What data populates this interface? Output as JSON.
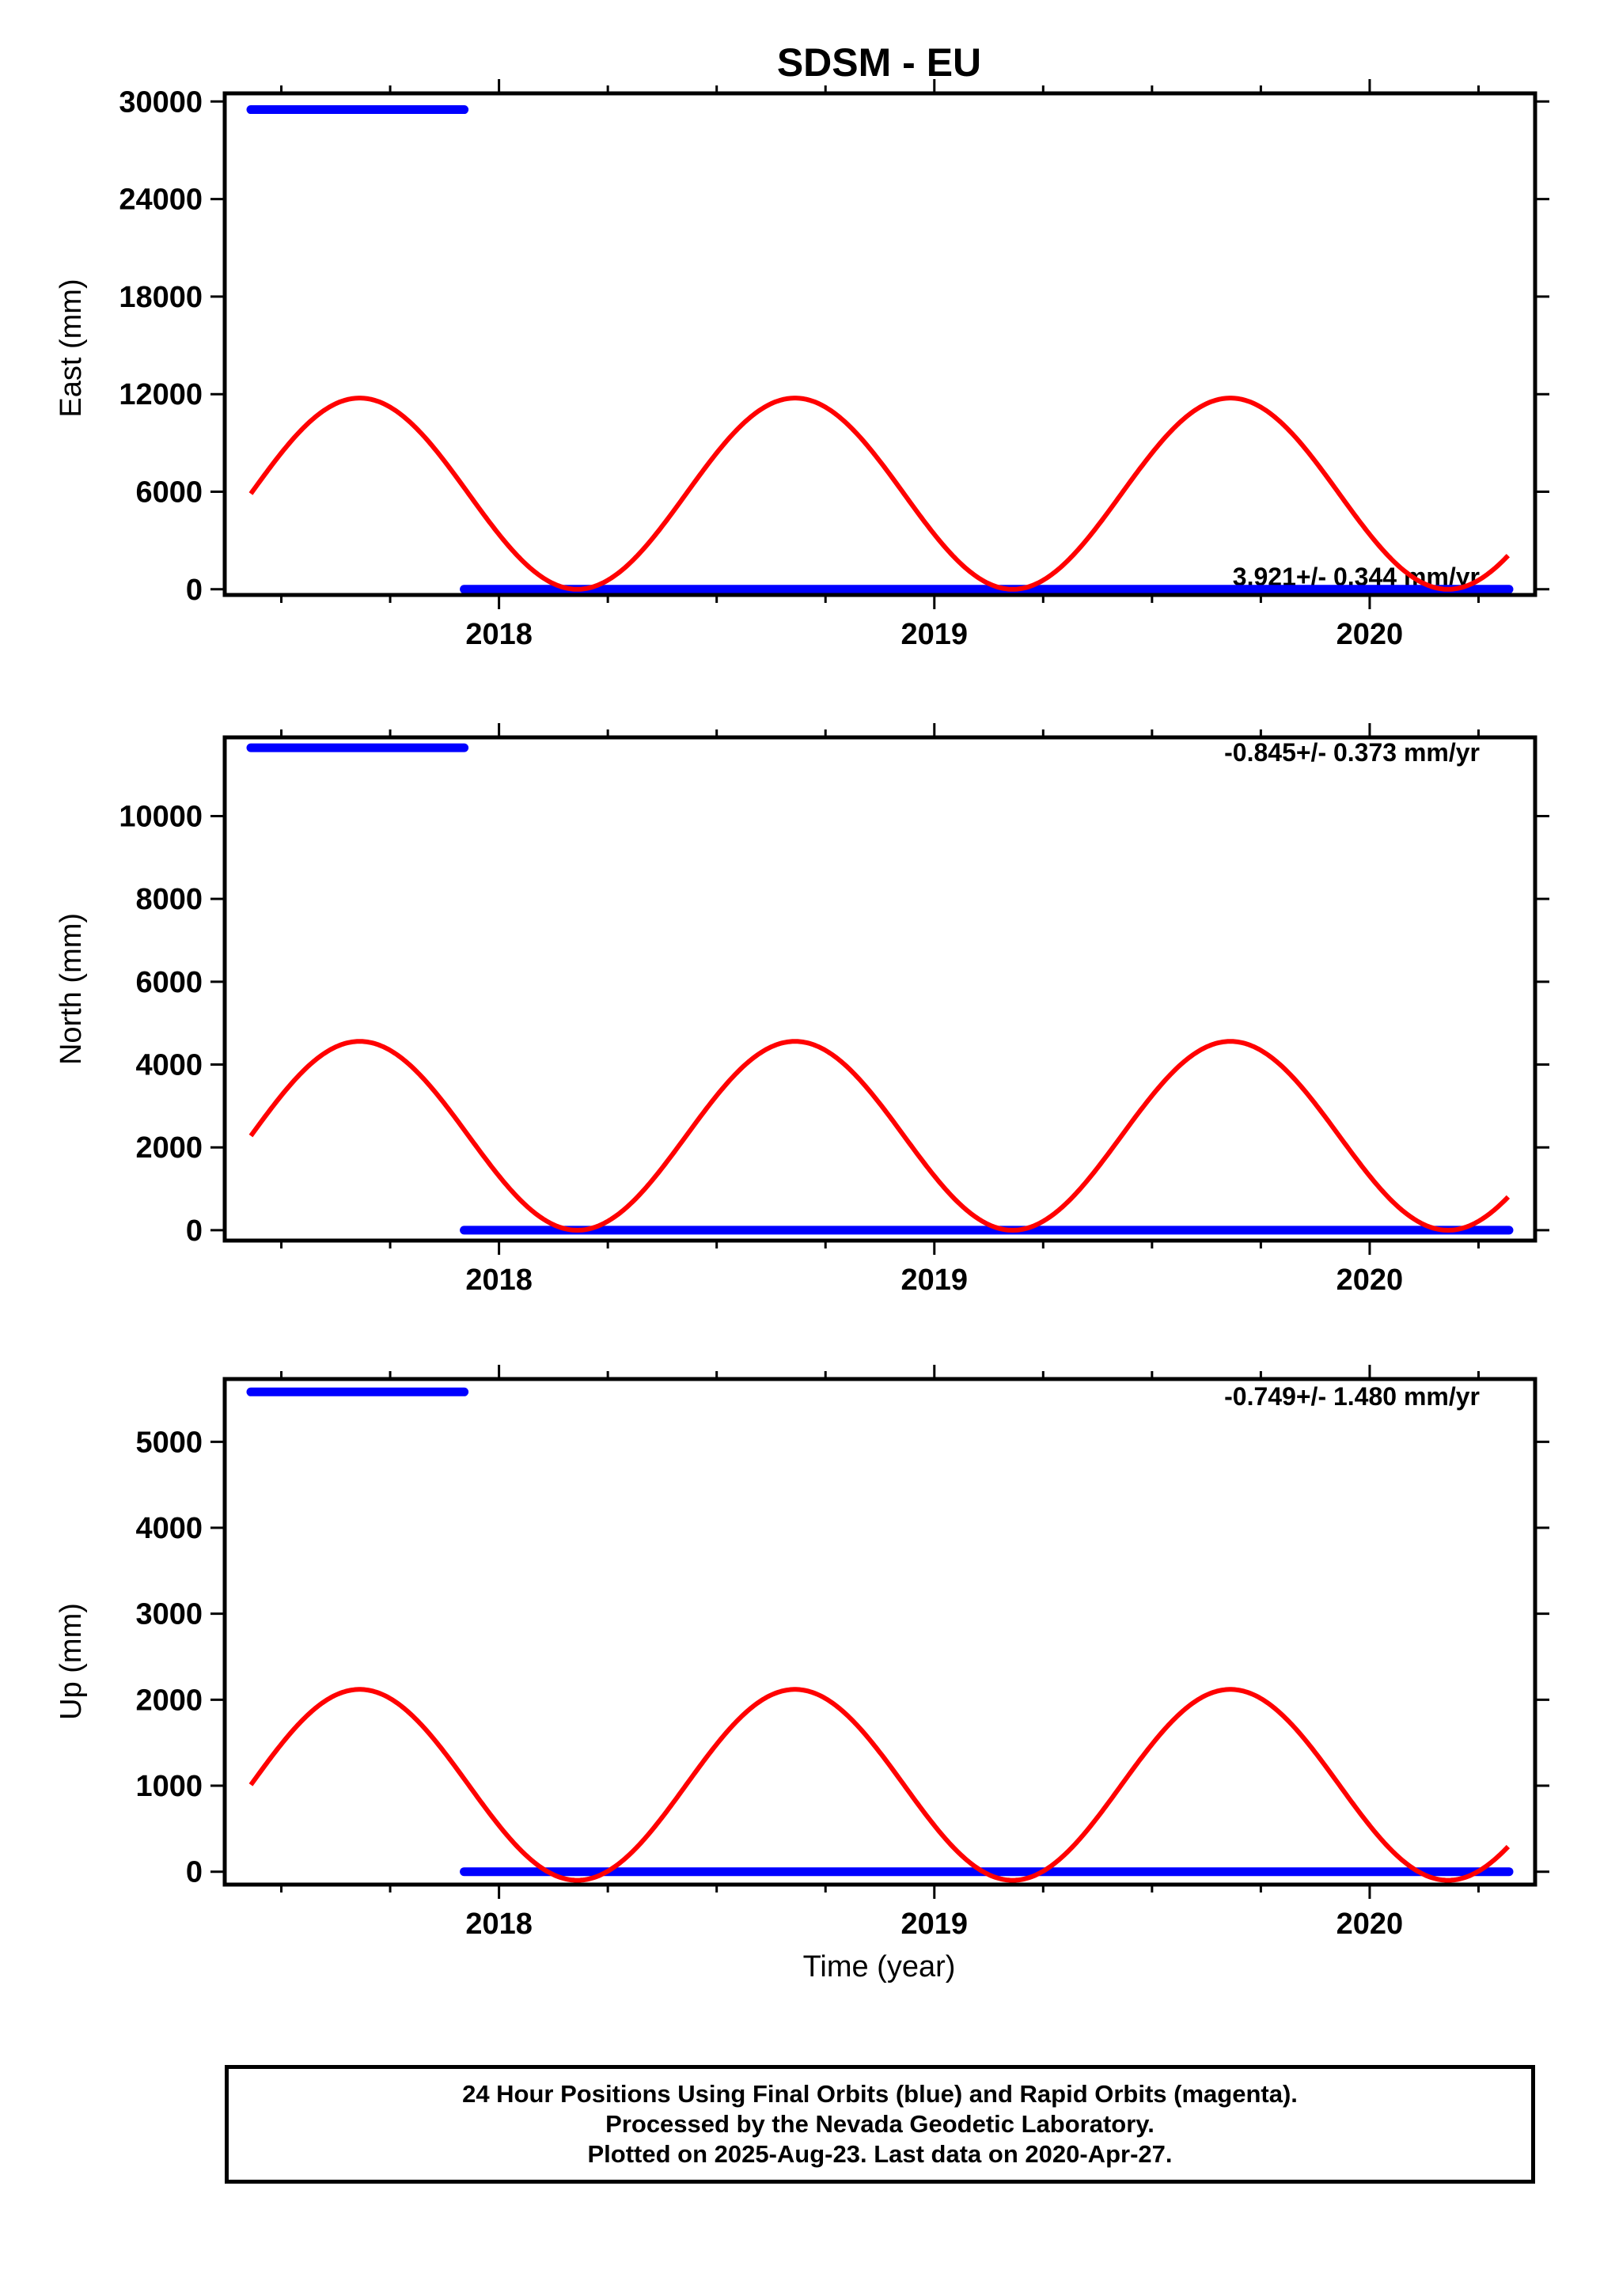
{
  "colors": {
    "final_orbits": "#0000ff",
    "model_fit": "#ff0000",
    "frame": "#000000"
  },
  "chart_data": [
    {
      "type": "scatter",
      "title": "SDSM - EU",
      "ylabel": "East (mm)",
      "xlabel": "",
      "ylim": [
        -350,
        30500
      ],
      "xlim": [
        2017.37,
        2020.38
      ],
      "yticks": [
        "0",
        "6000",
        "12000",
        "18000",
        "24000",
        "30000"
      ],
      "ytick_values": [
        0,
        6000,
        12000,
        18000,
        24000,
        30000
      ],
      "xticks": [
        "2018",
        "2019",
        "2020"
      ],
      "xtick_values": [
        2018,
        2019,
        2020
      ],
      "rate_label": "3.921+/- 0.344 mm/yr",
      "series": [
        {
          "segments": [
            {
              "x": [
                2017.43,
                2017.92
              ],
              "y": [
                29500,
                29500
              ]
            },
            {
              "x": [
                2017.92,
                2020.32
              ],
              "y": [
                0,
                0
              ]
            }
          ]
        },
        {
          "type": "line",
          "model": {
            "offset": 5880,
            "amplitude": 5880,
            "phase_year": 2017.43,
            "x_start": 2017.43,
            "x_end": 2020.32
          }
        }
      ]
    },
    {
      "type": "scatter",
      "title": "",
      "ylabel": "North (mm)",
      "xlabel": "",
      "ylim": [
        -250,
        11900
      ],
      "xlim": [
        2017.37,
        2020.38
      ],
      "yticks": [
        "0",
        "2000",
        "4000",
        "6000",
        "8000",
        "10000"
      ],
      "ytick_values": [
        0,
        2000,
        4000,
        6000,
        8000,
        10000
      ],
      "xticks": [
        "2018",
        "2019",
        "2020"
      ],
      "xtick_values": [
        2018,
        2019,
        2020
      ],
      "rate_label": "-0.845+/- 0.373 mm/yr",
      "series": [
        {
          "segments": [
            {
              "x": [
                2017.43,
                2017.92
              ],
              "y": [
                11650,
                11650
              ]
            },
            {
              "x": [
                2017.92,
                2020.32
              ],
              "y": [
                0,
                0
              ]
            }
          ]
        },
        {
          "type": "line",
          "model": {
            "offset": 2280,
            "amplitude": 2280,
            "phase_year": 2017.43,
            "x_start": 2017.43,
            "x_end": 2020.32
          }
        }
      ]
    },
    {
      "type": "scatter",
      "title": "",
      "ylabel": "Up (mm)",
      "xlabel": "Time (year)",
      "ylim": [
        -150,
        5730
      ],
      "xlim": [
        2017.37,
        2020.38
      ],
      "yticks": [
        "0",
        "1000",
        "2000",
        "3000",
        "4000",
        "5000"
      ],
      "ytick_values": [
        0,
        1000,
        2000,
        3000,
        4000,
        5000
      ],
      "xticks": [
        "2018",
        "2019",
        "2020"
      ],
      "xtick_values": [
        2018,
        2019,
        2020
      ],
      "rate_label": "-0.749+/- 1.480 mm/yr",
      "series": [
        {
          "segments": [
            {
              "x": [
                2017.43,
                2017.92
              ],
              "y": [
                5580,
                5580
              ]
            },
            {
              "x": [
                2017.92,
                2020.32
              ],
              "y": [
                0,
                0
              ]
            }
          ]
        },
        {
          "type": "line",
          "model": {
            "offset": 1010,
            "amplitude": 1110,
            "phase_year": 2017.43,
            "x_start": 2017.43,
            "x_end": 2020.32
          }
        }
      ]
    }
  ],
  "footer": {
    "line1": "24 Hour Positions Using Final Orbits (blue) and Rapid Orbits (magenta).",
    "line2": "Processed by the Nevada Geodetic Laboratory.",
    "line3": "Plotted on 2025-Aug-23. Last data on 2020-Apr-27."
  }
}
